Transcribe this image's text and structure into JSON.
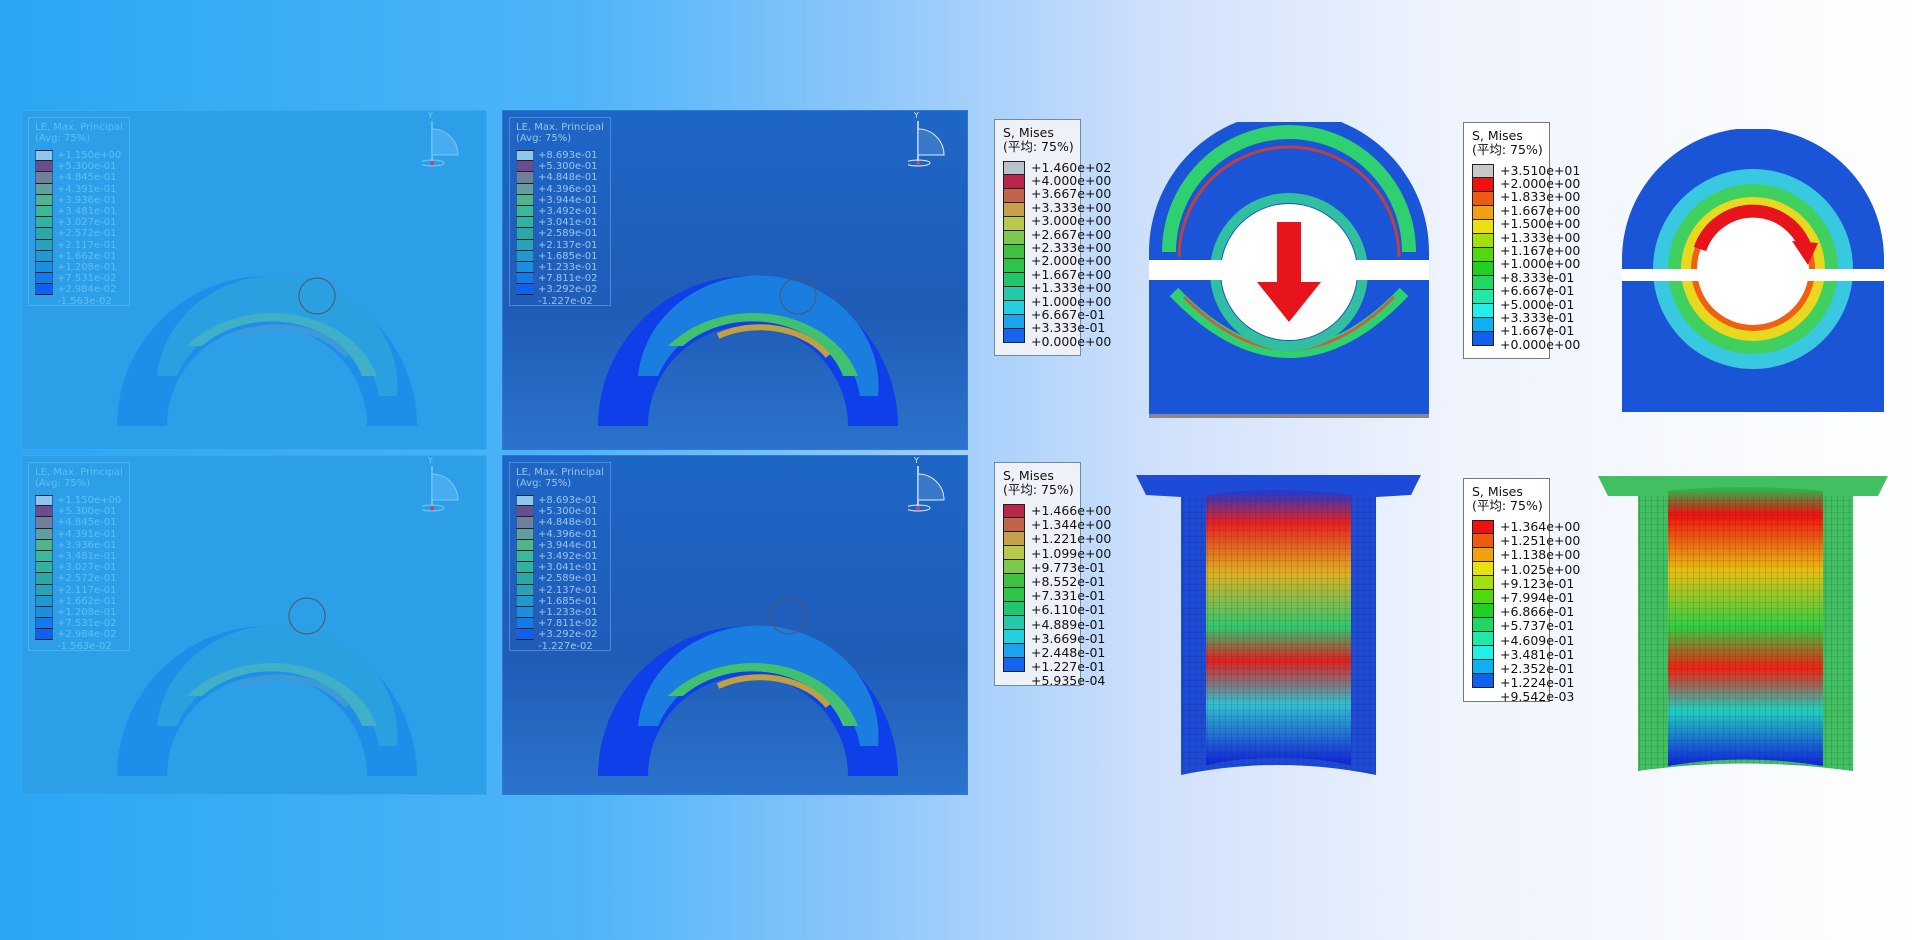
{
  "panels": [
    {
      "legend": {
        "title": "LE, Max. Principal",
        "subtitle": "(Avg: 75%)",
        "values": [
          "+1.150e+00",
          "+5.300e-01",
          "+4.845e-01",
          "+4.391e-01",
          "+3.936e-01",
          "+3.481e-01",
          "+3.027e-01",
          "+2.572e-01",
          "+2.117e-01",
          "+1.662e-01",
          "+1.208e-01",
          "+7.531e-02",
          "+2.984e-02",
          "-1.563e-02"
        ]
      },
      "axis_label": "Y"
    },
    {
      "legend": {
        "title": "LE, Max. Principal",
        "subtitle": "(Avg: 75%)",
        "values": [
          "+8.693e-01",
          "+5.300e-01",
          "+4.848e-01",
          "+4.396e-01",
          "+3.944e-01",
          "+3.492e-01",
          "+3.041e-01",
          "+2.589e-01",
          "+2.137e-01",
          "+1.685e-01",
          "+1.233e-01",
          "+7.811e-02",
          "+3.292e-02",
          "-1.227e-02"
        ]
      },
      "axis_label": "Y"
    },
    {
      "legend": {
        "title": "LE, Max. Principal",
        "subtitle": "(Avg: 75%)",
        "values": [
          "+1.150e+00",
          "+5.300e-01",
          "+4.845e-01",
          "+4.391e-01",
          "+3.936e-01",
          "+3.481e-01",
          "+3.027e-01",
          "+2.572e-01",
          "+2.117e-01",
          "+1.662e-01",
          "+1.208e-01",
          "+7.531e-02",
          "+2.984e-02",
          "-1.563e-02"
        ]
      },
      "axis_label": "Y"
    },
    {
      "legend": {
        "title": "LE, Max. Principal",
        "subtitle": "(Avg: 75%)",
        "values": [
          "+8.693e-01",
          "+5.300e-01",
          "+4.848e-01",
          "+4.396e-01",
          "+3.944e-01",
          "+3.492e-01",
          "+3.041e-01",
          "+2.589e-01",
          "+2.137e-01",
          "+1.685e-01",
          "+1.233e-01",
          "+7.811e-02",
          "+3.292e-02",
          "-1.227e-02"
        ]
      },
      "axis_label": "Y"
    }
  ],
  "le_colors": [
    "#8fc6f0",
    "#6a4d8e",
    "#6f7f9c",
    "#5f9fa0",
    "#4fb48e",
    "#39b99a",
    "#2fb2a0",
    "#2aa8a8",
    "#27a2b8",
    "#1f9ad0",
    "#1a8ee0",
    "#1479ea",
    "#0f5ff0",
    "#0a3ff5"
  ],
  "mises_legends": [
    {
      "title": "S, Mises",
      "subtitle": "(平均: 75%)",
      "values": [
        "+1.460e+02",
        "+4.000e+00",
        "+3.667e+00",
        "+3.333e+00",
        "+3.000e+00",
        "+2.667e+00",
        "+2.333e+00",
        "+2.000e+00",
        "+1.667e+00",
        "+1.333e+00",
        "+1.000e+00",
        "+6.667e-01",
        "+3.333e-01",
        "+0.000e+00"
      ],
      "colors": [
        "#b8c2cc",
        "#b8264a",
        "#c0644a",
        "#c6a04a",
        "#b8c84a",
        "#7cc84a",
        "#40c040",
        "#2ec44a",
        "#22c46e",
        "#26c8aa",
        "#22d0e0",
        "#1aa4f0",
        "#1464f0",
        "#0a28f0"
      ]
    },
    {
      "title": "S, Mises",
      "subtitle": "(平均: 75%)",
      "values": [
        "+3.510e+01",
        "+2.000e+00",
        "+1.833e+00",
        "+1.667e+00",
        "+1.500e+00",
        "+1.333e+00",
        "+1.167e+00",
        "+1.000e+00",
        "+8.333e-01",
        "+6.667e-01",
        "+5.000e-01",
        "+3.333e-01",
        "+1.667e-01",
        "+0.000e+00"
      ],
      "colors": [
        "#c8c8c8",
        "#f01010",
        "#f05a10",
        "#f0a010",
        "#e8e010",
        "#a0e010",
        "#50d810",
        "#20d020",
        "#20d860",
        "#20e8a8",
        "#20f0e8",
        "#10b0f0",
        "#1060f0",
        "#0010f0"
      ]
    },
    {
      "title": "S, Mises",
      "subtitle": "(平均: 75%)",
      "values": [
        "+1.466e+00",
        "+1.344e+00",
        "+1.221e+00",
        "+1.099e+00",
        "+9.773e-01",
        "+8.552e-01",
        "+7.331e-01",
        "+6.110e-01",
        "+4.889e-01",
        "+3.669e-01",
        "+2.448e-01",
        "+1.227e-01",
        "+5.935e-04"
      ],
      "colors": [
        "#b8264a",
        "#c0644a",
        "#c6a04a",
        "#b8c84a",
        "#7cc84a",
        "#40c040",
        "#2ec44a",
        "#22c46e",
        "#26c8aa",
        "#22d0e0",
        "#1aa4f0",
        "#1464f0",
        "#0a28f0"
      ]
    },
    {
      "title": "S, Mises",
      "subtitle": "(平均: 75%)",
      "values": [
        "+1.364e+00",
        "+1.251e+00",
        "+1.138e+00",
        "+1.025e+00",
        "+9.123e-01",
        "+7.994e-01",
        "+6.866e-01",
        "+5.737e-01",
        "+4.609e-01",
        "+3.481e-01",
        "+2.352e-01",
        "+1.224e-01",
        "+9.542e-03"
      ],
      "colors": [
        "#f01010",
        "#f05a10",
        "#f0a010",
        "#e8e010",
        "#a0e010",
        "#50d810",
        "#20d020",
        "#20d860",
        "#20e8a8",
        "#20f0e8",
        "#10b0f0",
        "#1060f0",
        "#0010f0"
      ]
    }
  ],
  "arrow_color": "#e8141c"
}
